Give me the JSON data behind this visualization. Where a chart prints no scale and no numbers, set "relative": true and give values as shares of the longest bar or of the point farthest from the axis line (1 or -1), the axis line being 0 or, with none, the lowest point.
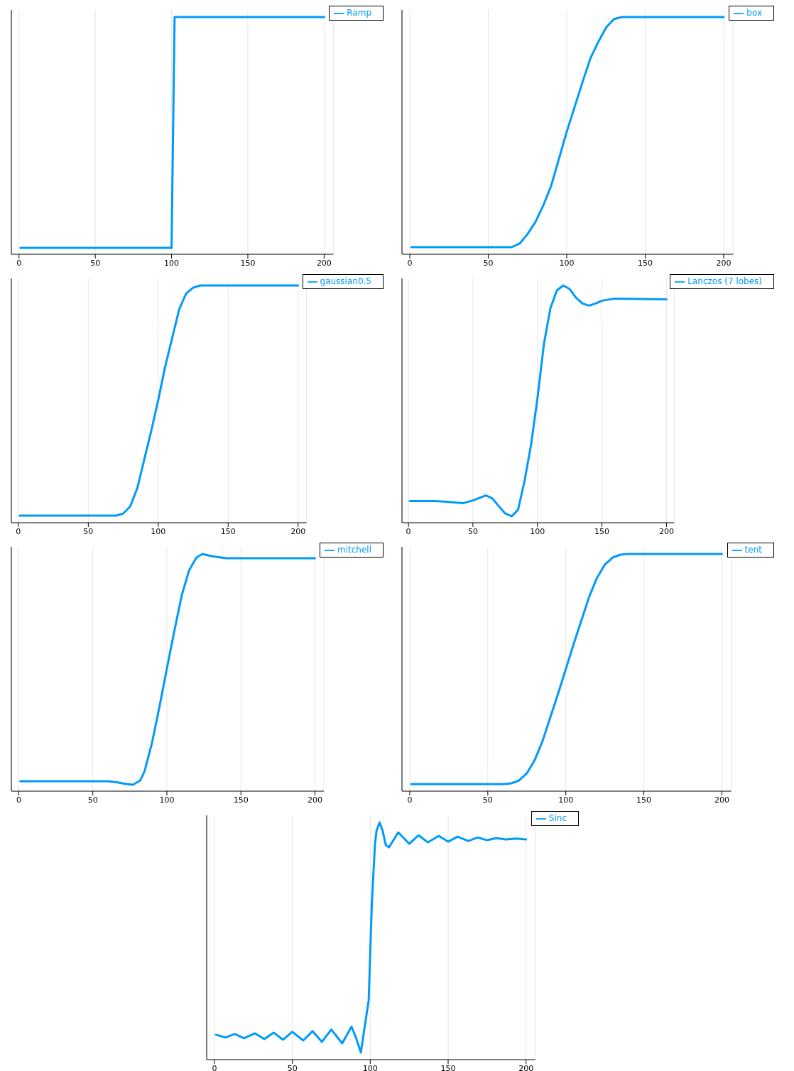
{
  "chart_data": [
    {
      "type": "line",
      "relative": true,
      "xlim": [
        -5,
        206
      ],
      "xticks": [
        0,
        50,
        100,
        150,
        200
      ],
      "grid": "x",
      "legend": "top right",
      "tick_labels": "x",
      "marker": "none",
      "series": [
        {
          "name": "Ramp",
          "color": "#009af9",
          "x": [
            1,
            100,
            102,
            200
          ],
          "values": [
            0.027,
            0.027,
            1,
            1
          ]
        }
      ]
    },
    {
      "type": "line",
      "relative": true,
      "xlim": [
        -5,
        206
      ],
      "xticks": [
        0,
        50,
        100,
        150,
        200
      ],
      "grid": "x",
      "legend": "top right",
      "tick_labels": "x",
      "marker": "none",
      "series": [
        {
          "name": "box",
          "color": "#009af9",
          "x": [
            1,
            65,
            70,
            75,
            80,
            85,
            90,
            100,
            110,
            115,
            120,
            125,
            130,
            135,
            200
          ],
          "values": [
            0.03,
            0.03,
            0.045,
            0.085,
            0.136,
            0.205,
            0.287,
            0.517,
            0.725,
            0.825,
            0.894,
            0.955,
            0.991,
            1,
            1
          ]
        }
      ]
    },
    {
      "type": "line",
      "relative": true,
      "xlim": [
        -5,
        206
      ],
      "xticks": [
        0,
        50,
        100,
        150,
        200
      ],
      "grid": "x",
      "legend": "top right",
      "tick_labels": "x",
      "marker": "none",
      "series": [
        {
          "name": "gaussian0.5",
          "color": "#009af9",
          "x": [
            1,
            70,
            75,
            80,
            85,
            90,
            95,
            100,
            105,
            110,
            115,
            120,
            125,
            130,
            200
          ],
          "values": [
            0.03,
            0.03,
            0.039,
            0.069,
            0.145,
            0.266,
            0.387,
            0.517,
            0.659,
            0.779,
            0.9,
            0.967,
            0.991,
            1,
            1
          ]
        }
      ]
    },
    {
      "type": "line",
      "relative": true,
      "xlim": [
        -5,
        206
      ],
      "xticks": [
        0,
        50,
        100,
        150,
        200
      ],
      "grid": "x",
      "legend": "top right",
      "tick_labels": "x",
      "marker": "none",
      "series": [
        {
          "name": "Lanczos (7 lobes)",
          "color": "#009af9",
          "x": [
            1,
            20,
            30,
            42,
            50,
            60,
            65,
            70,
            75,
            80,
            85,
            90,
            95,
            100,
            105,
            110,
            115,
            120,
            125,
            130,
            135,
            140,
            145,
            150,
            160,
            200
          ],
          "values": [
            0.091,
            0.091,
            0.088,
            0.082,
            0.094,
            0.115,
            0.103,
            0.07,
            0.039,
            0.027,
            0.055,
            0.176,
            0.327,
            0.524,
            0.752,
            0.903,
            0.979,
            1,
            0.985,
            0.948,
            0.924,
            0.915,
            0.924,
            0.936,
            0.945,
            0.942
          ]
        }
      ]
    },
    {
      "type": "line",
      "relative": true,
      "xlim": [
        -5,
        206
      ],
      "xticks": [
        0,
        50,
        100,
        150,
        200
      ],
      "grid": "x",
      "legend": "top right",
      "tick_labels": "x",
      "marker": "none",
      "series": [
        {
          "name": "mitchell",
          "color": "#009af9",
          "x": [
            1,
            60,
            65,
            70,
            77,
            82,
            85,
            90,
            95,
            100,
            105,
            110,
            115,
            120,
            124,
            130,
            140,
            200
          ],
          "values": [
            0.042,
            0.042,
            0.039,
            0.033,
            0.027,
            0.045,
            0.085,
            0.205,
            0.356,
            0.517,
            0.674,
            0.825,
            0.931,
            0.985,
            1,
            0.991,
            0.982,
            0.982
          ]
        }
      ]
    },
    {
      "type": "line",
      "relative": true,
      "xlim": [
        -5,
        206
      ],
      "xticks": [
        0,
        50,
        100,
        150,
        200
      ],
      "grid": "x",
      "legend": "top right",
      "tick_labels": "x",
      "marker": "none",
      "series": [
        {
          "name": "tent",
          "color": "#009af9",
          "x": [
            1,
            60,
            65,
            70,
            75,
            80,
            85,
            90,
            95,
            100,
            105,
            110,
            115,
            120,
            125,
            130,
            135,
            140,
            200
          ],
          "values": [
            0.03,
            0.03,
            0.033,
            0.045,
            0.075,
            0.13,
            0.21,
            0.31,
            0.41,
            0.515,
            0.62,
            0.72,
            0.82,
            0.9,
            0.955,
            0.985,
            0.997,
            1,
            1
          ]
        }
      ]
    },
    {
      "type": "line",
      "relative": true,
      "xlim": [
        -5,
        206
      ],
      "xticks": [
        0,
        50,
        100,
        150,
        200
      ],
      "grid": "x",
      "legend": "top right",
      "tick_labels": "x",
      "marker": "none",
      "series": [
        {
          "name": "Sinc",
          "color": "#009af9",
          "x": [
            1,
            7,
            13,
            19,
            26,
            32,
            38,
            44,
            50,
            57,
            63,
            69,
            75,
            82,
            88,
            91,
            94,
            96,
            99,
            101,
            103,
            104,
            106,
            108,
            110,
            112,
            118,
            125,
            131,
            137,
            144,
            150,
            156,
            163,
            169,
            175,
            181,
            187,
            194,
            200
          ],
          "values": [
            0.105,
            0.093,
            0.108,
            0.09,
            0.111,
            0.087,
            0.114,
            0.084,
            0.117,
            0.081,
            0.12,
            0.075,
            0.127,
            0.069,
            0.139,
            0.09,
            0.03,
            0.12,
            0.25,
            0.654,
            0.904,
            0.964,
            1,
            0.964,
            0.904,
            0.895,
            0.958,
            0.91,
            0.946,
            0.916,
            0.943,
            0.919,
            0.94,
            0.922,
            0.937,
            0.925,
            0.934,
            0.928,
            0.932,
            0.928
          ]
        }
      ]
    }
  ]
}
